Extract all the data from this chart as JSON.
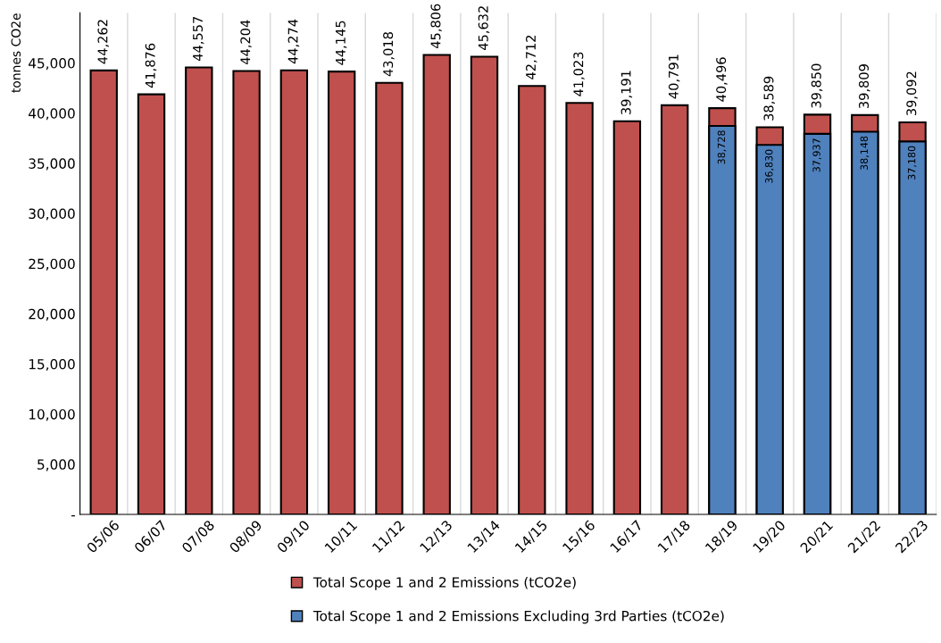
{
  "chart_data": {
    "type": "bar",
    "ylabel": "tonnes CO2e",
    "categories": [
      "05/06",
      "06/07",
      "07/08",
      "08/09",
      "09/10",
      "10/11",
      "11/12",
      "12/13",
      "13/14",
      "14/15",
      "15/16",
      "16/17",
      "17/18",
      "18/19",
      "19/20",
      "20/21",
      "21/22",
      "22/23"
    ],
    "series": [
      {
        "name": "Total Scope 1 and 2 Emissions (tCO2e)",
        "color": "#c0504d",
        "values": [
          44262,
          41876,
          44557,
          44204,
          44274,
          44145,
          43018,
          45806,
          45632,
          42712,
          41023,
          39191,
          40791,
          40496,
          38589,
          39850,
          39809,
          39092
        ],
        "value_labels": [
          "44,262",
          "41,876",
          "44,557",
          "44,204",
          "44,274",
          "44,145",
          "43,018",
          "45,806",
          "45,632",
          "42,712",
          "41,023",
          "39,191",
          "40,791",
          "40,496",
          "38,589",
          "39,850",
          "39,809",
          "39,092"
        ]
      },
      {
        "name": "Total Scope 1 and 2 Emissions Excluding 3rd Parties (tCO2e)",
        "color": "#4f81bd",
        "values": [
          null,
          null,
          null,
          null,
          null,
          null,
          null,
          null,
          null,
          null,
          null,
          null,
          null,
          38728,
          36830,
          37937,
          38148,
          37180
        ],
        "value_labels": [
          null,
          null,
          null,
          null,
          null,
          null,
          null,
          null,
          null,
          null,
          null,
          null,
          null,
          "38,728",
          "36,830",
          "37,937",
          "38,148",
          "37,180"
        ]
      }
    ],
    "ylim": [
      0,
      50000
    ],
    "yticks": [
      {
        "value": 0,
        "label": "-"
      },
      {
        "value": 5000,
        "label": "5,000"
      },
      {
        "value": 10000,
        "label": "10,000"
      },
      {
        "value": 15000,
        "label": "15,000"
      },
      {
        "value": 20000,
        "label": "20,000"
      },
      {
        "value": 25000,
        "label": "25,000"
      },
      {
        "value": 30000,
        "label": "30,000"
      },
      {
        "value": 35000,
        "label": "35,000"
      },
      {
        "value": 40000,
        "label": "40,000"
      },
      {
        "value": 45000,
        "label": "45,000"
      }
    ],
    "grid": "x",
    "legend": "bottom"
  }
}
